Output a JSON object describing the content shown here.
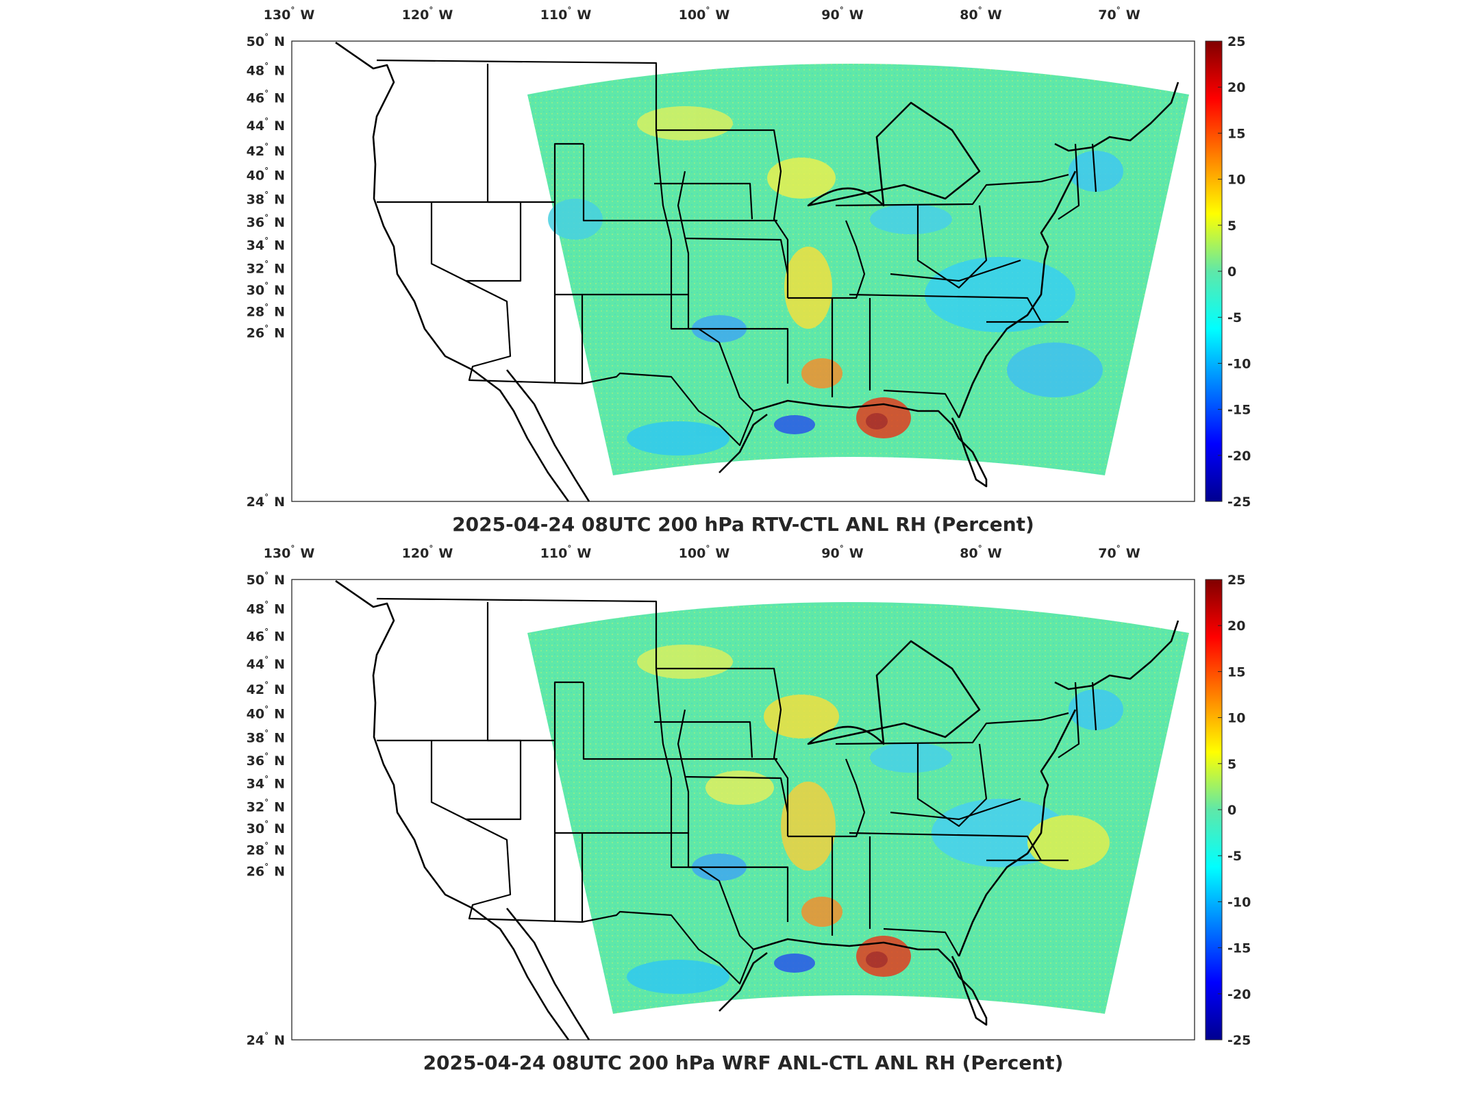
{
  "panels": [
    {
      "title": "2025-04-24 08UTC 200 hPa RTV-CTL ANL RH (Percent)",
      "lon_ticks": [
        "130",
        "120",
        "110",
        "100",
        "90",
        "80",
        "70"
      ],
      "lon_suffix": "W",
      "lat_ticks": [
        "50",
        "48",
        "46",
        "44",
        "42",
        "40",
        "38",
        "36",
        "34",
        "32",
        "30",
        "28",
        "26",
        "24"
      ],
      "lat_suffix": "N",
      "colorbar_ticks": [
        "25",
        "20",
        "15",
        "10",
        "5",
        "0",
        "-5",
        "-10",
        "-15",
        "-20",
        "-25"
      ]
    },
    {
      "title": "2025-04-24 08UTC 200 hPa WRF ANL-CTL ANL RH (Percent)",
      "lon_ticks": [
        "130",
        "120",
        "110",
        "100",
        "90",
        "80",
        "70"
      ],
      "lon_suffix": "W",
      "lat_ticks": [
        "50",
        "48",
        "46",
        "44",
        "42",
        "40",
        "38",
        "36",
        "34",
        "32",
        "30",
        "28",
        "26",
        "24"
      ],
      "lat_suffix": "N",
      "colorbar_ticks": [
        "25",
        "20",
        "15",
        "10",
        "5",
        "0",
        "-5",
        "-10",
        "-15",
        "-20",
        "-25"
      ]
    }
  ],
  "colors": {
    "field_base": "#5fe8a8",
    "colormap": "jet",
    "positive": "#d81b1b",
    "negative": "#1a3cff"
  }
}
